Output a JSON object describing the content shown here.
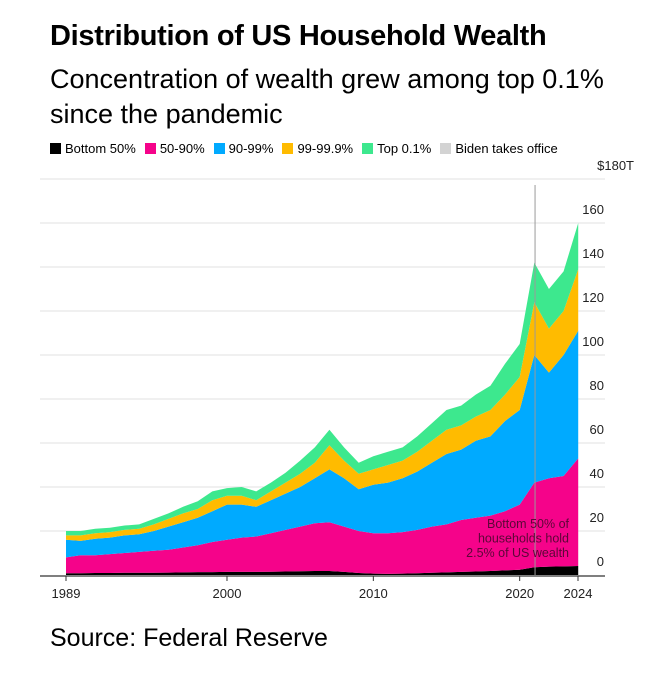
{
  "title": "Distribution of US Household Wealth",
  "subtitle": "Concentration of wealth grew among top 0.1% since the pandemic",
  "source": "Source: Federal Reserve",
  "chart_data": {
    "type": "area",
    "stacked": true,
    "title": "Distribution of US Household Wealth",
    "ylabel": "$T",
    "ylim": [
      0,
      180
    ],
    "yticks": [
      0,
      20,
      40,
      60,
      80,
      100,
      120,
      140,
      160,
      180
    ],
    "ytick_labels": [
      "0",
      "20",
      "40",
      "60",
      "80",
      "100",
      "120",
      "140",
      "160",
      "$180T"
    ],
    "xticks": [
      1989,
      2000,
      2010,
      2020,
      2024
    ],
    "xtick_labels": [
      "1989",
      "2000",
      "2010",
      "2020",
      "2024"
    ],
    "xlim": [
      1989,
      2024.6
    ],
    "legend_position": "top",
    "x": [
      1989,
      1990,
      1991,
      1992,
      1993,
      1994,
      1995,
      1996,
      1997,
      1998,
      1999,
      2000,
      2001,
      2002,
      2003,
      2004,
      2005,
      2006,
      2007,
      2008,
      2009,
      2010,
      2011,
      2012,
      2013,
      2014,
      2015,
      2016,
      2017,
      2018,
      2019,
      2020,
      2021,
      2022,
      2023,
      2024
    ],
    "series": [
      {
        "name": "Bottom 50%",
        "color": "#000000",
        "values": [
          0.8,
          0.8,
          0.9,
          0.9,
          1,
          1,
          1,
          1.1,
          1.2,
          1.3,
          1.3,
          1.4,
          1.4,
          1.4,
          1.5,
          1.6,
          1.7,
          1.8,
          1.8,
          1.4,
          0.9,
          0.6,
          0.5,
          0.6,
          0.8,
          1,
          1.2,
          1.4,
          1.6,
          1.8,
          2.1,
          2.4,
          3.5,
          3.8,
          3.9,
          4.1
        ]
      },
      {
        "name": "50-90%",
        "color": "#f5038a",
        "values": [
          7.2,
          8.2,
          8.1,
          8.6,
          9,
          9.5,
          10,
          10.4,
          11.3,
          12.2,
          13.7,
          14.6,
          15.6,
          16.1,
          17.5,
          18.9,
          20.3,
          21.7,
          22.2,
          20.6,
          19.1,
          18.4,
          18.5,
          18.9,
          19.7,
          21,
          21.8,
          23.6,
          24.4,
          25.2,
          26.9,
          29.6,
          38.5,
          40.2,
          41.1,
          48.9
        ]
      },
      {
        "name": "90-99%",
        "color": "#00aaff",
        "values": [
          8,
          6.5,
          7.5,
          7.5,
          8,
          8,
          9,
          10.5,
          11.5,
          12.5,
          14,
          16,
          15,
          13.5,
          15,
          16.5,
          18,
          20.5,
          24,
          22,
          19,
          22,
          23,
          24.5,
          26.5,
          29,
          32,
          32,
          35,
          36,
          41,
          43,
          58,
          48,
          55,
          58
        ]
      },
      {
        "name": "99-99.9%",
        "color": "#ffbb00",
        "values": [
          2,
          2.5,
          2.5,
          2.5,
          2.5,
          2.5,
          3,
          3.5,
          4,
          4,
          5,
          4,
          4,
          3,
          4,
          5,
          6,
          7,
          11,
          8,
          7,
          7,
          8,
          8,
          9,
          10,
          11,
          11,
          11,
          12,
          12,
          15,
          24,
          20,
          20,
          28
        ]
      },
      {
        "name": "Top 0.1%",
        "color": "#3de88e",
        "values": [
          2,
          2,
          2,
          2,
          2,
          2,
          2.5,
          2.5,
          3,
          3.5,
          4,
          3.5,
          4,
          4,
          4,
          4.5,
          6,
          7,
          7,
          6,
          5,
          6,
          6,
          6,
          7,
          8,
          9,
          9,
          10,
          11,
          14,
          15,
          18,
          18,
          18,
          21
        ]
      }
    ],
    "annotations": [
      {
        "type": "vline",
        "x": 2021.05,
        "label": "Biden takes office",
        "color": "#d3d3d3"
      },
      {
        "type": "text",
        "text": "Bottom 50% of households hold 2.5% of US wealth"
      }
    ]
  },
  "legend": [
    {
      "label": "Bottom 50%",
      "color": "#000000"
    },
    {
      "label": "50-90%",
      "color": "#f5038a"
    },
    {
      "label": "90-99%",
      "color": "#00aaff"
    },
    {
      "label": "99-99.9%",
      "color": "#ffbb00"
    },
    {
      "label": "Top 0.1%",
      "color": "#3de88e"
    },
    {
      "label": "Biden takes office",
      "color": "#d3d3d3"
    }
  ],
  "annotation": {
    "line1": "Bottom 50% of",
    "line2": "households hold",
    "line3": "2.5% of US wealth"
  }
}
